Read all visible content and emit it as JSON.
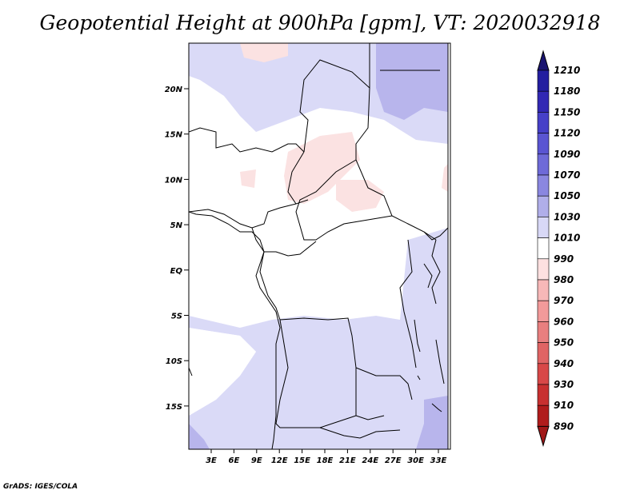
{
  "title": "Geopotential Height at 900hPa [gpm], VT: 2020032918",
  "footer": "GrADS: IGES/COLA",
  "map": {
    "variable": "Geopotential Height",
    "level": "900hPa",
    "units": "gpm",
    "valid_time": "2020032918",
    "lat_labels": [
      "20N",
      "15N",
      "10N",
      "5N",
      "EQ",
      "5S",
      "10S",
      "15S"
    ],
    "lon_labels": [
      "3E",
      "6E",
      "9E",
      "12E",
      "15E",
      "18E",
      "21E",
      "24E",
      "27E",
      "30E",
      "33E"
    ]
  },
  "colorbar": {
    "levels": [
      "1210",
      "1180",
      "1150",
      "1120",
      "1090",
      "1070",
      "1050",
      "1030",
      "1010",
      "990",
      "980",
      "970",
      "960",
      "950",
      "940",
      "930",
      "910",
      "890"
    ],
    "colors": [
      "#1a1470",
      "#231ea0",
      "#3228b4",
      "#4640c8",
      "#5a55d2",
      "#6e6ad8",
      "#8a87e0",
      "#b0aee9",
      "#d8d8f6",
      "#ffffff",
      "#fde0e0",
      "#f7b8b8",
      "#f29a9a",
      "#e87f7f",
      "#e06464",
      "#d84848",
      "#c83030",
      "#b01c1c"
    ],
    "top_cap": "#1a1470",
    "bottom_cap": "#a01818"
  }
}
